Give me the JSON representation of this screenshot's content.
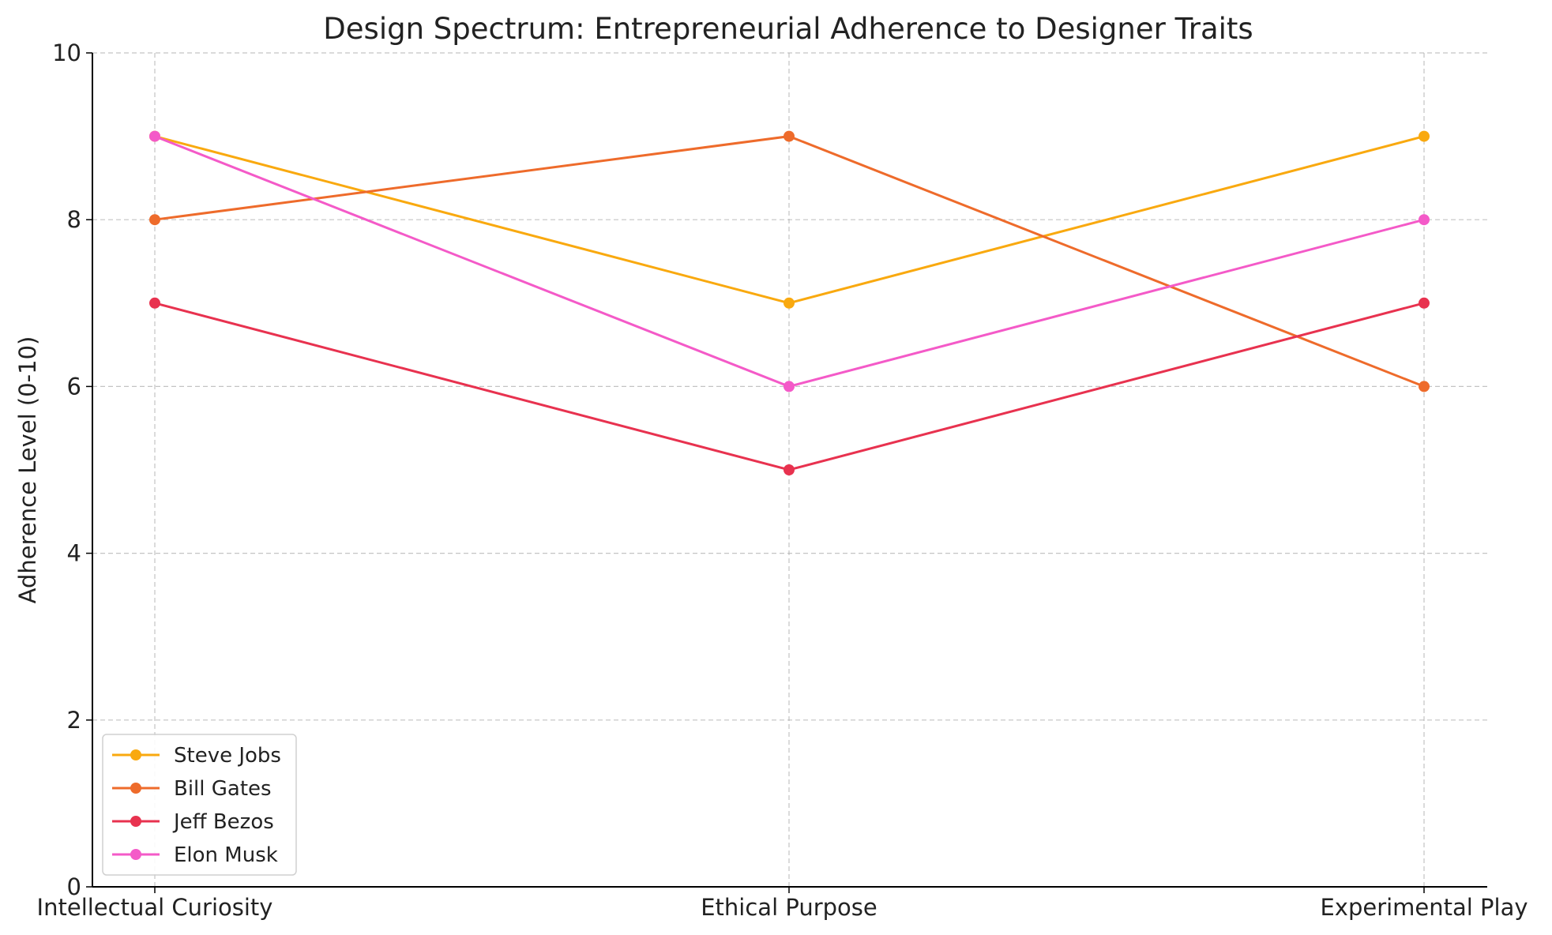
{
  "chart_data": {
    "type": "line",
    "title": "Design Spectrum: Entrepreneurial Adherence to Designer Traits",
    "xlabel": "",
    "ylabel": "Adherence Level (0-10)",
    "categories": [
      "Intellectual Curiosity",
      "Ethical Purpose",
      "Experimental Play"
    ],
    "ylim": [
      0,
      10
    ],
    "yticks": [
      0,
      2,
      4,
      6,
      8,
      10
    ],
    "grid": true,
    "legend_position": "lower-left",
    "series": [
      {
        "name": "Steve Jobs",
        "values": [
          9,
          7,
          9
        ],
        "color": "#F9A90F"
      },
      {
        "name": "Bill Gates",
        "values": [
          8,
          9,
          6
        ],
        "color": "#EE6B2B"
      },
      {
        "name": "Jeff Bezos",
        "values": [
          7,
          5,
          7
        ],
        "color": "#E8324F"
      },
      {
        "name": "Elon Musk",
        "values": [
          9,
          6,
          8
        ],
        "color": "#F45AC8"
      }
    ]
  }
}
